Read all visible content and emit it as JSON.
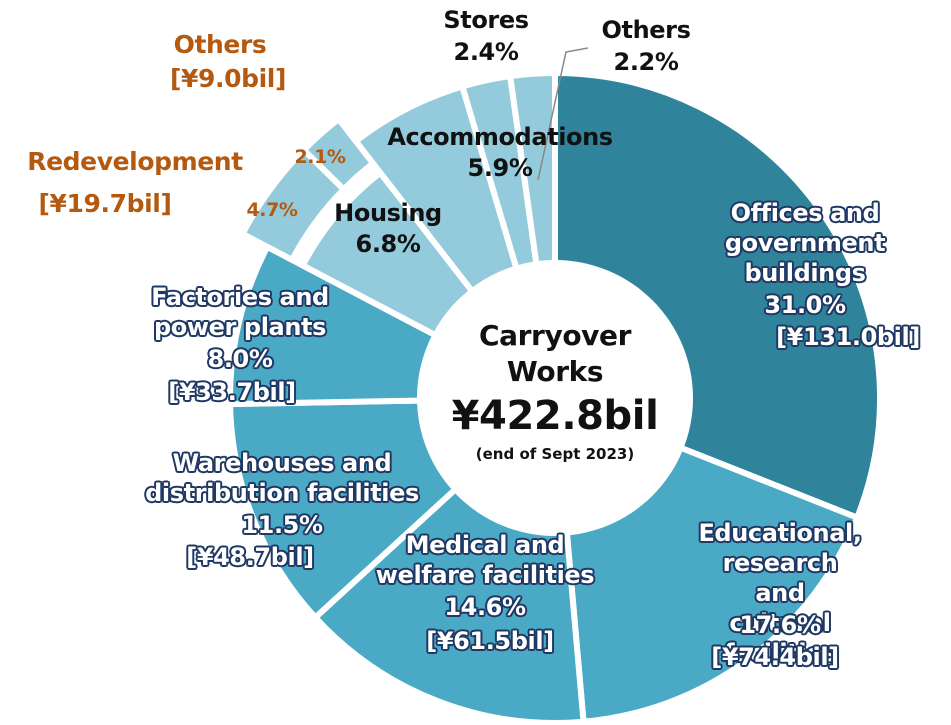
{
  "chart_data": {
    "type": "donut",
    "categories": [
      "Offices and\ngovernment\nbuildings",
      "Educational,\nresearch and\ncultural facilities",
      "Medical and\nwelfare facilities",
      "Warehouses and\ndistribution facilities",
      "Factories and\npower plants",
      "Housing",
      "Accommodations",
      "Stores",
      "Others"
    ],
    "values": [
      31.0,
      17.6,
      14.6,
      11.5,
      8.0,
      6.8,
      5.9,
      2.4,
      2.2
    ],
    "value_labels": [
      "31.0%",
      "17.6%",
      "14.6%",
      "11.5%",
      "8.0%",
      "6.8%",
      "5.9%",
      "2.4%",
      "2.2%"
    ],
    "amount_labels": [
      "[¥131.0bil]",
      "[¥74.4bil]",
      "[¥61.5bil]",
      "[¥48.7bil]",
      "[¥33.7bil]",
      null,
      null,
      null,
      null
    ],
    "colors": [
      "#2f849c",
      "#4aaac6",
      "#4aaac6",
      "#4aaac6",
      "#4aaac6",
      "#93cbdc",
      "#93cbdc",
      "#93cbdc",
      "#93cbdc"
    ],
    "sub_slices": [
      {
        "name": "Redevelopment",
        "value": 4.7,
        "value_label": "4.7%",
        "amount_label": "[¥19.7bil]"
      },
      {
        "name": "Others",
        "value": 2.1,
        "value_label": "2.1%",
        "amount_label": "[¥9.0bil]"
      }
    ],
    "sub_color": "#93cbdc",
    "center_title": "Carryover\nWorks",
    "total": 422.8,
    "total_label": "¥422.8bil",
    "center_note": "(end of Sept 2023)"
  }
}
